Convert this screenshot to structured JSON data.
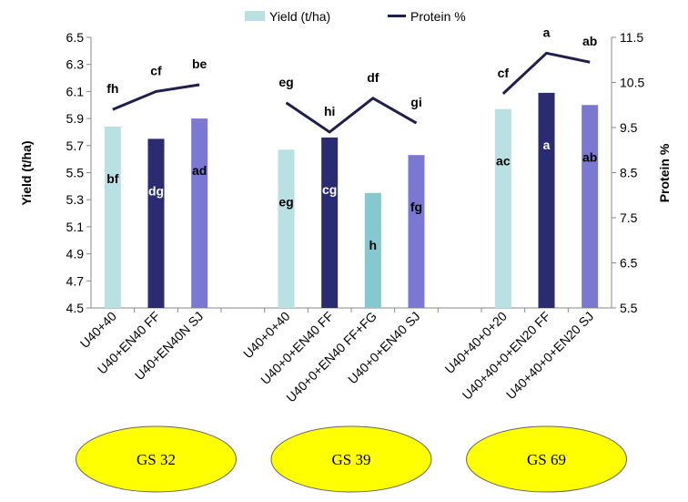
{
  "chart_data": {
    "type": "bar+line",
    "legend": {
      "position": "top",
      "items": [
        {
          "name": "Yield (t/ha)",
          "kind": "bar",
          "color": "#B9E1E3"
        },
        {
          "name": "Protein %",
          "kind": "line",
          "color": "#1F1F4F"
        }
      ]
    },
    "y_left": {
      "label": "Yield (t/ha)",
      "min": 4.5,
      "max": 6.5,
      "ticks": [
        "4.5",
        "4.7",
        "4.9",
        "5.1",
        "5.3",
        "5.5",
        "5.7",
        "5.9",
        "6.1",
        "6.3",
        "6.5"
      ]
    },
    "y_right": {
      "label": "Protein %",
      "min": 5.5,
      "max": 11.5,
      "ticks": [
        "5.5",
        "6.5",
        "7.5",
        "8.5",
        "9.5",
        "10.5",
        "11.5"
      ]
    },
    "grid": false,
    "groups": [
      {
        "stage": "GS 32",
        "treatments": [
          {
            "label": "U40+40",
            "yield": 5.84,
            "yield_sig": "bf",
            "protein": 9.9,
            "protein_sig": "fh",
            "color": "#B9E1E3",
            "sig_color": "#000000"
          },
          {
            "label": "U40+EN40 FF",
            "yield": 5.75,
            "yield_sig": "dg",
            "protein": 10.3,
            "protein_sig": "cf",
            "color": "#2B2B72",
            "sig_color": "#FFFFFF"
          },
          {
            "label": "U40+EN40N SJ",
            "yield": 5.9,
            "yield_sig": "ad",
            "protein": 10.45,
            "protein_sig": "be",
            "color": "#7B78D2",
            "sig_color": "#000000"
          }
        ]
      },
      {
        "stage": "GS 39",
        "treatments": [
          {
            "label": "U40+0+40",
            "yield": 5.67,
            "yield_sig": "eg",
            "protein": 10.05,
            "protein_sig": "eg",
            "color": "#B9E1E3",
            "sig_color": "#000000"
          },
          {
            "label": "U40+0+EN40 FF",
            "yield": 5.76,
            "yield_sig": "cg",
            "protein": 9.4,
            "protein_sig": "hi",
            "color": "#2B2B72",
            "sig_color": "#FFFFFF"
          },
          {
            "label": "U40+0+EN40 FF+FG",
            "yield": 5.35,
            "yield_sig": "h",
            "protein": 10.15,
            "protein_sig": "df",
            "color": "#86C8CF",
            "sig_color": "#000000"
          },
          {
            "label": "U40+0+EN40 SJ",
            "yield": 5.63,
            "yield_sig": "fg",
            "protein": 9.6,
            "protein_sig": "gi",
            "color": "#7B78D2",
            "sig_color": "#000000"
          }
        ]
      },
      {
        "stage": "GS 69",
        "treatments": [
          {
            "label": "U40+40+0+20",
            "yield": 5.97,
            "yield_sig": "ac",
            "protein": 10.25,
            "protein_sig": "cf",
            "color": "#B9E1E3",
            "sig_color": "#000000"
          },
          {
            "label": "U40+40+0+EN20 FF",
            "yield": 6.09,
            "yield_sig": "a",
            "protein": 11.15,
            "protein_sig": "a",
            "color": "#2B2B72",
            "sig_color": "#FFFFFF"
          },
          {
            "label": "U40+40+0+EN20 SJ",
            "yield": 6.0,
            "yield_sig": "ab",
            "protein": 10.95,
            "protein_sig": "ab",
            "color": "#7B78D2",
            "sig_color": "#000000"
          }
        ]
      }
    ],
    "stage_badge_color": "#FFFF00",
    "line_color": "#1F1F4F",
    "axis_color": "#888888"
  }
}
